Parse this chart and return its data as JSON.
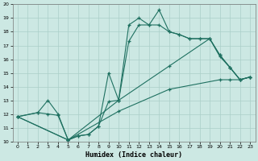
{
  "xlabel": "Humidex (Indice chaleur)",
  "xlim": [
    -0.5,
    23.5
  ],
  "ylim": [
    10,
    20
  ],
  "xticks": [
    0,
    1,
    2,
    3,
    4,
    5,
    6,
    7,
    8,
    9,
    10,
    11,
    12,
    13,
    14,
    15,
    16,
    17,
    18,
    19,
    20,
    21,
    22,
    23
  ],
  "yticks": [
    10,
    11,
    12,
    13,
    14,
    15,
    16,
    17,
    18,
    19,
    20
  ],
  "bg_color": "#cce8e3",
  "grid_color": "#aacfc8",
  "line_color": "#1e7060",
  "s1_x": [
    0,
    2,
    3,
    4,
    5,
    6,
    7,
    8,
    9,
    10,
    11,
    12,
    13,
    14,
    15,
    16,
    17,
    18,
    19,
    20,
    21,
    22,
    23
  ],
  "s1_y": [
    11.8,
    12.1,
    12.0,
    11.9,
    10.1,
    10.4,
    10.5,
    11.1,
    15.0,
    13.0,
    18.5,
    19.0,
    18.5,
    19.6,
    18.0,
    17.8,
    17.5,
    17.5,
    17.5,
    16.3,
    15.4,
    14.5,
    14.7
  ],
  "s2_x": [
    0,
    2,
    3,
    4,
    5,
    6,
    7,
    8,
    9,
    10,
    11,
    12,
    13,
    14,
    15,
    16,
    17,
    18,
    19,
    20,
    21,
    22,
    23
  ],
  "s2_y": [
    11.8,
    12.1,
    13.0,
    12.0,
    10.1,
    10.4,
    10.5,
    11.1,
    12.9,
    13.0,
    17.3,
    18.5,
    18.5,
    18.5,
    18.0,
    17.8,
    17.5,
    17.5,
    17.5,
    16.3,
    15.4,
    14.5,
    14.7
  ],
  "s3_x": [
    0,
    5,
    10,
    15,
    19,
    20,
    21,
    22,
    23
  ],
  "s3_y": [
    11.8,
    10.1,
    13.0,
    15.5,
    17.5,
    16.2,
    15.4,
    14.5,
    14.7
  ],
  "s4_x": [
    0,
    5,
    10,
    15,
    20,
    21,
    22,
    23
  ],
  "s4_y": [
    11.8,
    10.1,
    12.2,
    13.8,
    14.5,
    14.5,
    14.5,
    14.7
  ]
}
